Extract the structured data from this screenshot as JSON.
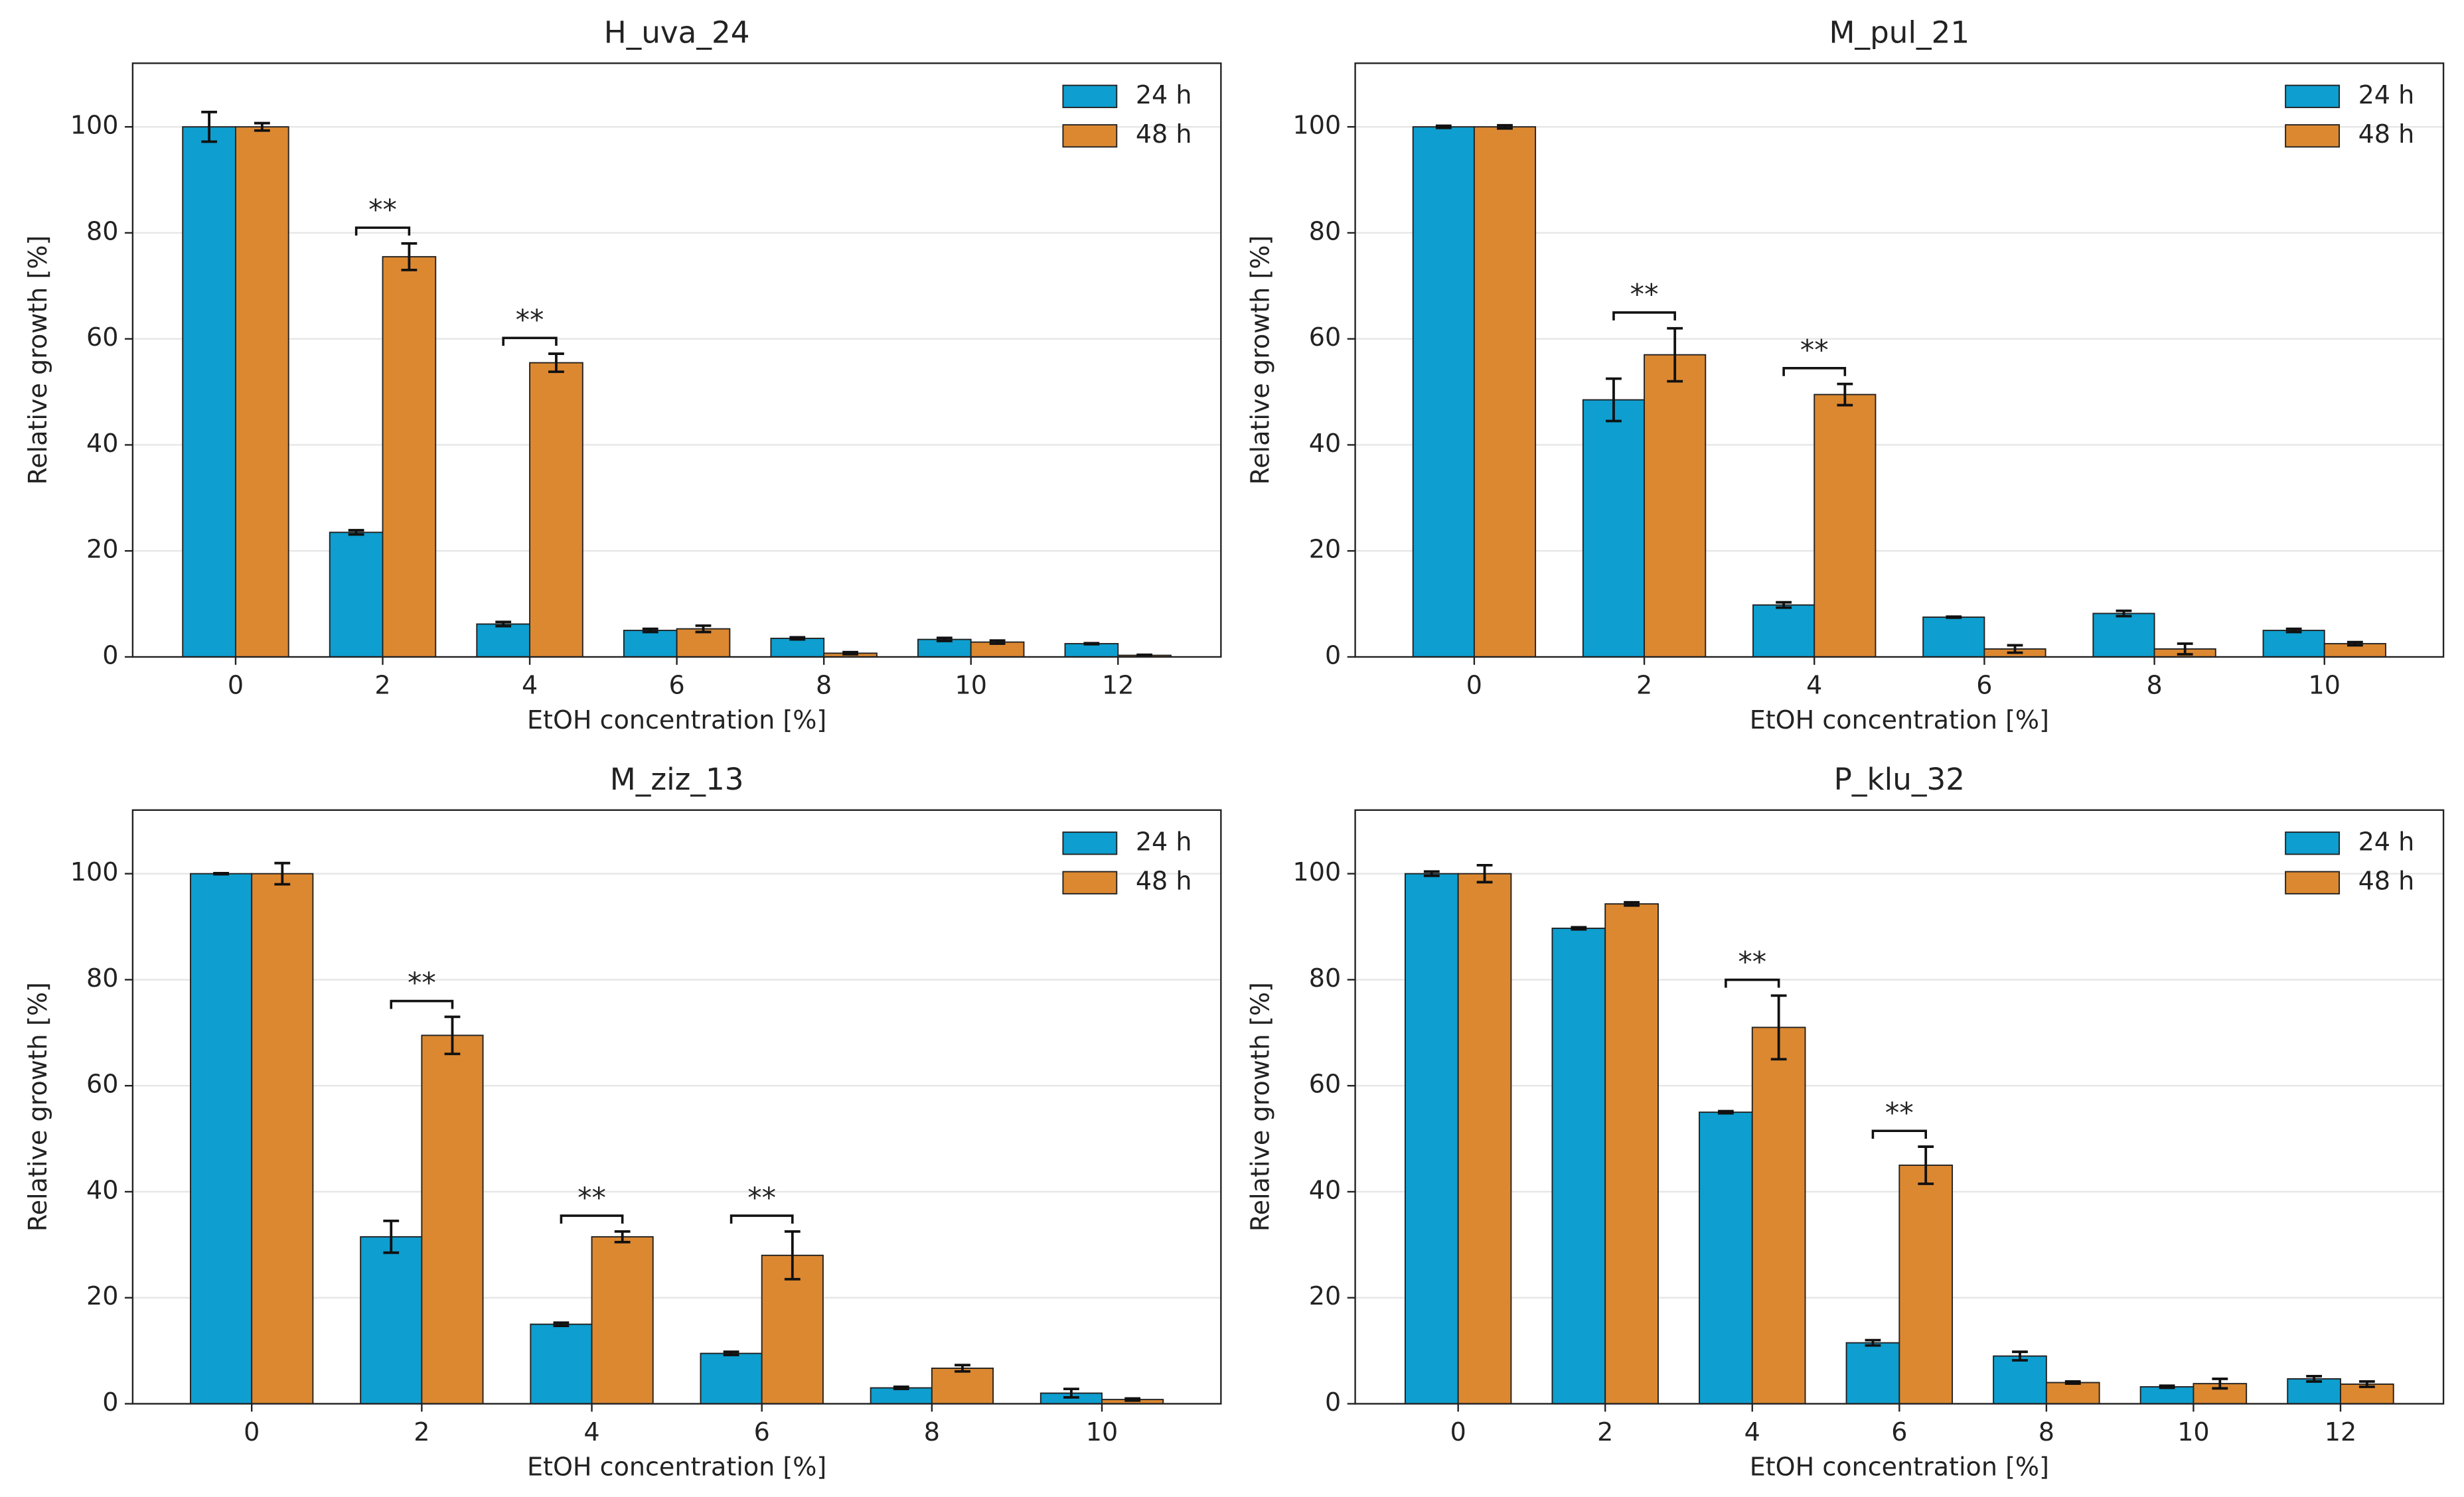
{
  "chart_data": [
    {
      "type": "bar",
      "title": "H_uva_24",
      "xlabel": "EtOH concentration [%]",
      "ylabel": "Relative growth [%]",
      "categories": [
        "0",
        "2",
        "4",
        "6",
        "8",
        "10",
        "12"
      ],
      "series": [
        {
          "name": "24 h",
          "color": "#0e9ecf",
          "values": [
            100,
            23.5,
            6.2,
            5,
            3.5,
            3.3,
            2.5
          ],
          "errors": [
            2.8,
            0.4,
            0.4,
            0.3,
            0.2,
            0.3,
            0.1
          ]
        },
        {
          "name": "48 h",
          "color": "#dc8831",
          "values": [
            100,
            75.5,
            55.5,
            5.3,
            0.7,
            2.8,
            0.3
          ],
          "errors": [
            0.7,
            2.5,
            1.7,
            0.6,
            0.2,
            0.3,
            0.1
          ]
        }
      ],
      "significance": [
        {
          "category": "2",
          "label": "**"
        },
        {
          "category": "4",
          "label": "**"
        }
      ],
      "ylim": [
        0,
        112
      ],
      "yticks": [
        0,
        20,
        40,
        60,
        80,
        100
      ],
      "grid": true,
      "legend": "upper right"
    },
    {
      "type": "bar",
      "title": "M_pul_21",
      "xlabel": "EtOH concentration [%]",
      "ylabel": "Relative growth [%]",
      "categories": [
        "0",
        "2",
        "4",
        "6",
        "8",
        "10"
      ],
      "series": [
        {
          "name": "24 h",
          "color": "#0e9ecf",
          "values": [
            100,
            48.5,
            9.8,
            7.5,
            8.2,
            5
          ],
          "errors": [
            0.2,
            4,
            0.5,
            0.1,
            0.5,
            0.3
          ]
        },
        {
          "name": "48 h",
          "color": "#dc8831",
          "values": [
            100,
            57,
            49.5,
            1.5,
            1.5,
            2.5
          ],
          "errors": [
            0.3,
            5,
            2,
            0.7,
            1,
            0.3
          ]
        }
      ],
      "significance": [
        {
          "category": "2",
          "label": "**"
        },
        {
          "category": "4",
          "label": "**"
        }
      ],
      "ylim": [
        0,
        112
      ],
      "yticks": [
        0,
        20,
        40,
        60,
        80,
        100
      ],
      "grid": true,
      "legend": "upper right"
    },
    {
      "type": "bar",
      "title": "M_ziz_13",
      "xlabel": "EtOH concentration [%]",
      "ylabel": "Relative growth [%]",
      "categories": [
        "0",
        "2",
        "4",
        "6",
        "8",
        "10"
      ],
      "series": [
        {
          "name": "24 h",
          "color": "#0e9ecf",
          "values": [
            100,
            31.5,
            15,
            9.5,
            3,
            2
          ],
          "errors": [
            0.1,
            3,
            0.3,
            0.3,
            0.2,
            0.8
          ]
        },
        {
          "name": "48 h",
          "color": "#dc8831",
          "values": [
            100,
            69.5,
            31.5,
            28,
            6.7,
            0.8
          ],
          "errors": [
            2,
            3.5,
            1,
            4.5,
            0.6,
            0.2
          ]
        }
      ],
      "significance": [
        {
          "category": "2",
          "label": "**"
        },
        {
          "category": "4",
          "label": "**"
        },
        {
          "category": "6",
          "label": "**"
        }
      ],
      "ylim": [
        0,
        112
      ],
      "yticks": [
        0,
        20,
        40,
        60,
        80,
        100
      ],
      "grid": true,
      "legend": "upper right"
    },
    {
      "type": "bar",
      "title": "P_klu_32",
      "xlabel": "EtOH concentration [%]",
      "ylabel": "Relative growth [%]",
      "categories": [
        "0",
        "2",
        "4",
        "6",
        "8",
        "10",
        "12"
      ],
      "series": [
        {
          "name": "24 h",
          "color": "#0e9ecf",
          "values": [
            100,
            89.7,
            55,
            11.5,
            9,
            3.2,
            4.7
          ],
          "errors": [
            0.4,
            0.2,
            0.2,
            0.5,
            0.8,
            0.2,
            0.5
          ]
        },
        {
          "name": "48 h",
          "color": "#dc8831",
          "values": [
            100,
            94.3,
            71,
            45,
            4,
            3.8,
            3.7
          ],
          "errors": [
            1.6,
            0.3,
            6,
            3.5,
            0.2,
            0.9,
            0.5
          ]
        }
      ],
      "significance": [
        {
          "category": "4",
          "label": "**"
        },
        {
          "category": "6",
          "label": "**"
        }
      ],
      "ylim": [
        0,
        112
      ],
      "yticks": [
        0,
        20,
        40,
        60,
        80,
        100
      ],
      "grid": true,
      "legend": "upper right"
    }
  ]
}
